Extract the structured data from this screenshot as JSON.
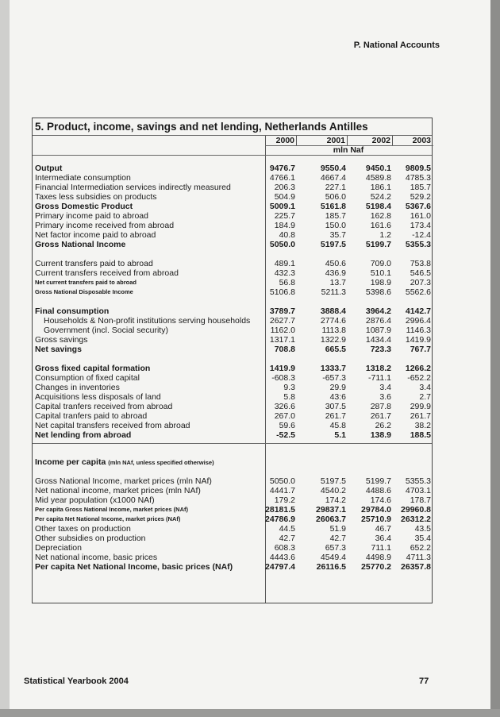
{
  "running_head": "P. National Accounts",
  "footer": {
    "left": "Statistical Yearbook 2004",
    "page_number": "77"
  },
  "table": {
    "title": "5. Product, income, savings and net lending, Netherlands Antilles",
    "years": [
      "2000",
      "2001",
      "2002",
      "2003"
    ],
    "unit": "mln Naf",
    "sections": [
      {
        "rows": [
          {
            "label": "Output",
            "style": "bold",
            "values": [
              "9476.7",
              "9550.4",
              "9450.1",
              "9809.5"
            ]
          },
          {
            "label": "Intermediate consumption",
            "values": [
              "4766.1",
              "4667.4",
              "4589.8",
              "4785.3"
            ]
          },
          {
            "label": "Financial Intermediation services indirectly measured",
            "values": [
              "206.3",
              "227.1",
              "186.1",
              "185.7"
            ]
          },
          {
            "label": "Taxes less subsidies on products",
            "values": [
              "504.9",
              "506.0",
              "524.2",
              "529.2"
            ]
          },
          {
            "label": "Gross Domestic Product",
            "style": "bold-label",
            "values": [
              "5009.1",
              "5161.8",
              "5198.4",
              "5367.6"
            ]
          },
          {
            "label": "Primary income paid to abroad",
            "values": [
              "225.7",
              "185.7",
              "162.8",
              "161.0"
            ]
          },
          {
            "label": "Primary income received from abroad",
            "values": [
              "184.9",
              "150.0",
              "161.6",
              "173.4"
            ]
          },
          {
            "label": "Net factor income paid to abroad",
            "values": [
              "40.8",
              "35.7",
              "1.2",
              "-12.4"
            ]
          },
          {
            "label": "Gross National Income",
            "style": "bold",
            "values": [
              "5050.0",
              "5197.5",
              "5199.7",
              "5355.3"
            ]
          }
        ]
      },
      {
        "rows": [
          {
            "label": "Current transfers paid to abroad",
            "values": [
              "489.1",
              "450.6",
              "709.0",
              "753.8"
            ]
          },
          {
            "label": "Current transfers received from abroad",
            "values": [
              "432.3",
              "436.9",
              "510.1",
              "546.5"
            ]
          },
          {
            "label": "Net current transfers paid to abroad",
            "style": "small",
            "values": [
              "56.8",
              "13.7",
              "198.9",
              "207.3"
            ]
          },
          {
            "label": "Gross National Disposable Income",
            "style": "small",
            "values": [
              "5106.8",
              "5211.3",
              "5398.6",
              "5562.6"
            ]
          }
        ]
      },
      {
        "rows": [
          {
            "label": "Final consumption",
            "style": "bold",
            "values": [
              "3789.7",
              "3888.4",
              "3964.2",
              "4142.7"
            ]
          },
          {
            "label": "Households & Non-profit institutions serving households",
            "style": "indent",
            "values": [
              "2627.7",
              "2774.6",
              "2876.4",
              "2996.4"
            ]
          },
          {
            "label": "Government (incl. Social security)",
            "style": "indent",
            "values": [
              "1162.0",
              "1113.8",
              "1087.9",
              "1146.3"
            ]
          },
          {
            "label": "Gross savings",
            "values": [
              "1317.1",
              "1322.9",
              "1434.4",
              "1419.9"
            ]
          },
          {
            "label": "Net savings",
            "style": "bold",
            "values": [
              "708.8",
              "665.5",
              "723.3",
              "767.7"
            ]
          }
        ]
      },
      {
        "rows": [
          {
            "label": "Gross fixed capital formation",
            "style": "bold",
            "values": [
              "1419.9",
              "1333.7",
              "1318.2",
              "1266.2"
            ]
          },
          {
            "label": "Consumption of fixed capital",
            "values": [
              "-608.3",
              "-657.3",
              "-711.1",
              "-652.2"
            ]
          },
          {
            "label": "Changes in inventories",
            "values": [
              "9.3",
              "29.9",
              "3.4",
              "3.4"
            ]
          },
          {
            "label": "Acquisitions less disposals of land",
            "values": [
              "5.8",
              "43:6",
              "3.6",
              "2.7"
            ]
          },
          {
            "label": "Capital tranfers received from  abroad",
            "values": [
              "326.6",
              "307.5",
              "287.8",
              "299.9"
            ]
          },
          {
            "label": "Capital tranfers paid to abroad",
            "values": [
              "267.0",
              "261.7",
              "261.7",
              "261.7"
            ]
          },
          {
            "label": "Net capital transfers received from abroad",
            "values": [
              "59.6",
              "45.8",
              "26.2",
              "38.2"
            ]
          },
          {
            "label": "Net lending from abroad",
            "style": "bold",
            "values": [
              "-52.5",
              "5.1",
              "138.9",
              "188.5"
            ]
          }
        ]
      }
    ],
    "per_capita": {
      "heading": "Income per capita",
      "heading_note": "(mln NAf, unless specified otherwise)",
      "rows": [
        {
          "label": "Gross National Income, market prices (mln NAf)",
          "values": [
            "5050.0",
            "5197.5",
            "5199.7",
            "5355.3"
          ]
        },
        {
          "label": "Net national income, market prices (mln NAf)",
          "values": [
            "4441.7",
            "4540.2",
            "4488.6",
            "4703.1"
          ]
        },
        {
          "label": "Mid year population (x1000 NAf)",
          "values": [
            "179.2",
            "174.2",
            "174.6",
            "178.7"
          ]
        },
        {
          "label": "Per capita Gross National Income, market prices (NAf)",
          "style": "small bold",
          "values": [
            "28181.5",
            "29837.1",
            "29784.0",
            "29960.8"
          ]
        },
        {
          "label": "Per capita Net National Income, market prices (NAf)",
          "style": "small bold",
          "values": [
            "24786.9",
            "26063.7",
            "25710.9",
            "26312.2"
          ]
        },
        {
          "label": "Other taxes on  production",
          "values": [
            "44.5",
            "51.9",
            "46.7",
            "43.5"
          ]
        },
        {
          "label": "Other subsidies on  production",
          "values": [
            "42.7",
            "42.7",
            "36.4",
            "35.4"
          ]
        },
        {
          "label": "Depreciation",
          "values": [
            "608.3",
            "657.3",
            "711.1",
            "652.2"
          ]
        },
        {
          "label": "Net national income, basic prices",
          "values": [
            "4443.6",
            "4549.4",
            "4498.9",
            "4711.3"
          ]
        },
        {
          "label": "Per capita Net National Income, basic prices (NAf)",
          "style": "bold",
          "values": [
            "24797.4",
            "26116.5",
            "25770.2",
            "26357.8"
          ]
        }
      ]
    }
  }
}
